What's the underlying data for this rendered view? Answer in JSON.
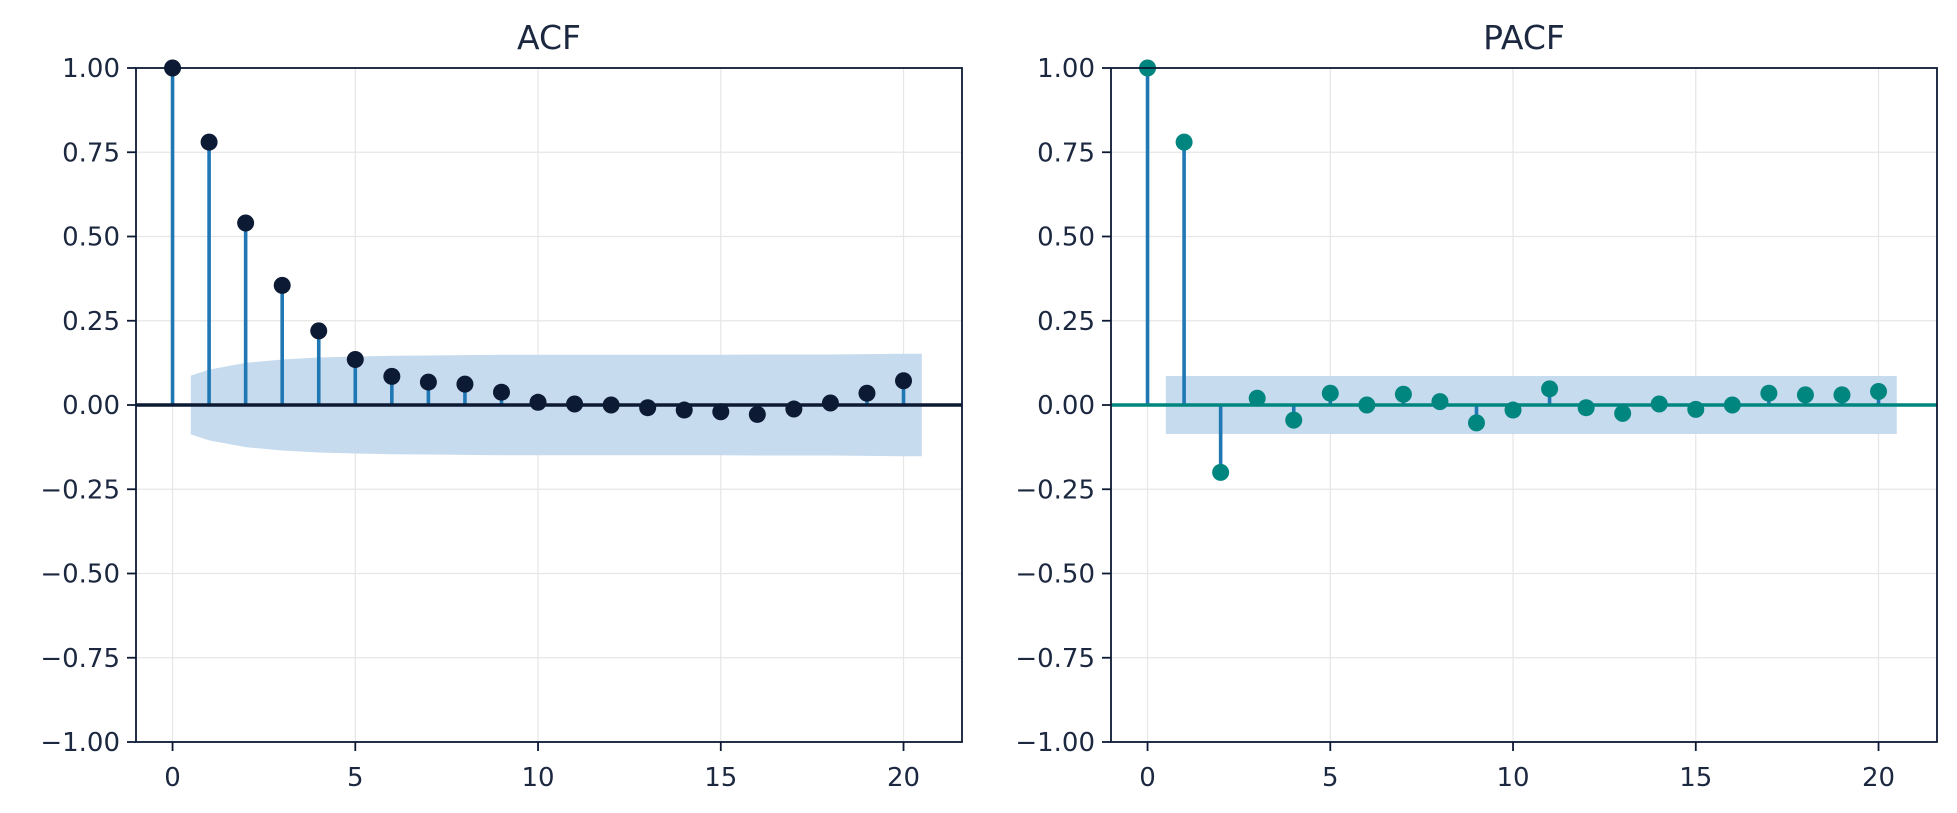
{
  "chart_data": [
    {
      "type": "stem",
      "title": "ACF",
      "xlim": [
        -1,
        21.6
      ],
      "ylim": [
        -1.0,
        1.0
      ],
      "xticks": [
        0,
        5,
        10,
        15,
        20
      ],
      "xtick_labels": [
        "0",
        "5",
        "10",
        "15",
        "20"
      ],
      "yticks": [
        1.0,
        0.75,
        0.5,
        0.25,
        0.0,
        -0.25,
        -0.5,
        -0.75,
        -1.0
      ],
      "ytick_labels": [
        "1.00",
        "0.75",
        "0.50",
        "0.25",
        "0.00",
        "−0.25",
        "−0.50",
        "−0.75",
        "−1.00"
      ],
      "grid": true,
      "lags": [
        0,
        1,
        2,
        3,
        4,
        5,
        6,
        7,
        8,
        9,
        10,
        11,
        12,
        13,
        14,
        15,
        16,
        17,
        18,
        19,
        20
      ],
      "values": [
        1.0,
        0.78,
        0.54,
        0.355,
        0.22,
        0.135,
        0.085,
        0.068,
        0.062,
        0.038,
        0.008,
        0.003,
        0.0,
        -0.008,
        -0.015,
        -0.02,
        -0.028,
        -0.012,
        0.006,
        0.035,
        0.072
      ],
      "confidence_band": {
        "x": [
          0.5,
          1,
          2,
          3,
          4,
          5,
          6,
          7,
          8,
          9,
          10,
          11,
          12,
          13,
          14,
          15,
          16,
          17,
          18,
          19,
          20,
          20.5
        ],
        "upper": [
          0.087,
          0.105,
          0.125,
          0.135,
          0.141,
          0.144,
          0.146,
          0.147,
          0.148,
          0.149,
          0.149,
          0.149,
          0.149,
          0.149,
          0.149,
          0.149,
          0.15,
          0.15,
          0.15,
          0.151,
          0.152,
          0.152
        ]
      },
      "colors": {
        "stem": "#1f77b4",
        "marker": "#0c1a34",
        "zero_line": "#0c1a34",
        "band": "#c6dbee",
        "axis": "#0c1a34",
        "grid": "#e6e6e6"
      }
    },
    {
      "type": "stem",
      "title": "PACF",
      "xlim": [
        -1,
        21.6
      ],
      "ylim": [
        -1.0,
        1.0
      ],
      "xticks": [
        0,
        5,
        10,
        15,
        20
      ],
      "xtick_labels": [
        "0",
        "5",
        "10",
        "15",
        "20"
      ],
      "yticks": [
        1.0,
        0.75,
        0.5,
        0.25,
        0.0,
        -0.25,
        -0.5,
        -0.75,
        -1.0
      ],
      "ytick_labels": [
        "1.00",
        "0.75",
        "0.50",
        "0.25",
        "0.00",
        "−0.25",
        "−0.50",
        "−0.75",
        "−1.00"
      ],
      "grid": true,
      "lags": [
        0,
        1,
        2,
        3,
        4,
        5,
        6,
        7,
        8,
        9,
        10,
        11,
        12,
        13,
        14,
        15,
        16,
        17,
        18,
        19,
        20
      ],
      "values": [
        1.0,
        0.78,
        -0.2,
        0.02,
        -0.045,
        0.035,
        0.0,
        0.032,
        0.01,
        -0.053,
        -0.015,
        0.048,
        -0.008,
        -0.025,
        0.003,
        -0.013,
        0.0,
        0.035,
        0.03,
        0.03,
        0.04
      ],
      "confidence_band": {
        "x": [
          0.5,
          20.5
        ],
        "upper": [
          0.086,
          0.086
        ]
      },
      "colors": {
        "stem": "#1f77b4",
        "marker": "#00857f",
        "zero_line": "#00857f",
        "band": "#c6dbee",
        "axis": "#0c1a34",
        "grid": "#e6e6e6"
      }
    }
  ]
}
